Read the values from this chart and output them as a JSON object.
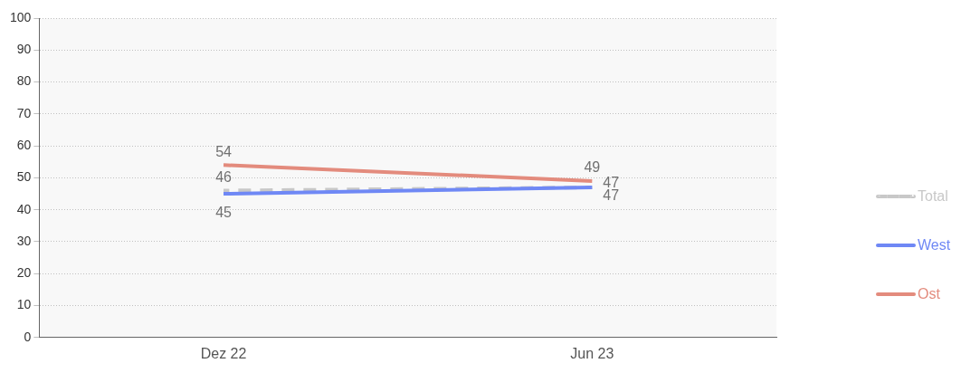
{
  "chart_data": {
    "type": "line",
    "categories": [
      "Dez 22",
      "Jun 23"
    ],
    "series": [
      {
        "name": "Total",
        "color": "#c8c8c8",
        "values": [
          46,
          47
        ],
        "line_style": "dashed"
      },
      {
        "name": "West",
        "color": "#6f88f5",
        "values": [
          45,
          47
        ],
        "line_style": "solid"
      },
      {
        "name": "Ost",
        "color": "#e38b7d",
        "values": [
          54,
          49
        ],
        "line_style": "solid"
      }
    ],
    "ylim": [
      0,
      100
    ],
    "yticks": [
      0,
      10,
      20,
      30,
      40,
      50,
      60,
      70,
      80,
      90,
      100
    ],
    "grid": "y",
    "legend": "right",
    "data_labels": true,
    "marker": "none"
  }
}
